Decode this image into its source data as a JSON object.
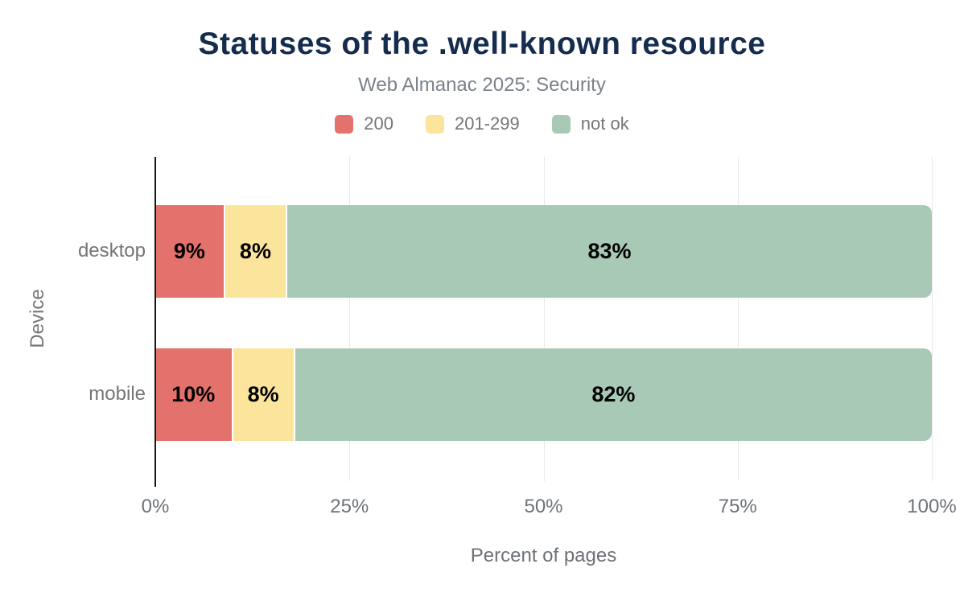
{
  "colors": {
    "title": "#152c4e",
    "subtitle_text": "#7b828c",
    "axis_text": "#757575",
    "tick_text": "#6d7278",
    "axis_line": "#161616",
    "gridline": "#e8e8e8",
    "data_label": "#000000",
    "background": "#ffffff"
  },
  "chart_data": {
    "type": "bar",
    "orientation": "horizontal",
    "stacked": true,
    "title": "Statuses of the .well-known resource",
    "subtitle": "Web Almanac 2025: Security",
    "categories": [
      "desktop",
      "mobile"
    ],
    "series": [
      {
        "name": "200",
        "color": "#e2726b",
        "values": [
          9,
          10
        ]
      },
      {
        "name": "201-299",
        "color": "#fbe49c",
        "values": [
          8,
          8
        ]
      },
      {
        "name": "not ok",
        "color": "#a9c9b7",
        "values": [
          83,
          82
        ]
      }
    ],
    "data_labels": [
      [
        "9%",
        "8%",
        "83%"
      ],
      [
        "10%",
        "8%",
        "82%"
      ]
    ],
    "xlabel": "Percent of pages",
    "ylabel": "Device",
    "xlim": [
      0,
      100
    ],
    "xticks": [
      0,
      25,
      50,
      75,
      100
    ],
    "xtick_labels": [
      "0%",
      "25%",
      "50%",
      "75%",
      "100%"
    ],
    "grid": "vertical",
    "legend_position": "top",
    "unit": "%"
  }
}
